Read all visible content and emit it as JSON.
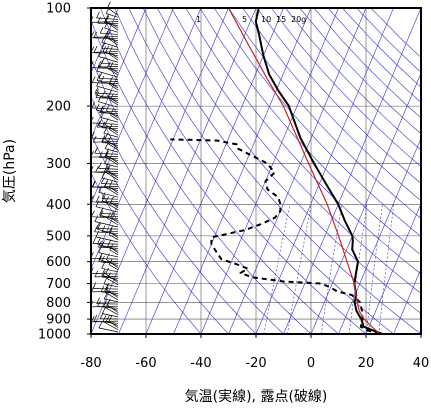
{
  "chart_data": {
    "type": "line",
    "xlabel": "気温(実線), 露点(破線)",
    "ylabel": "気圧(hPa)",
    "xlim": [
      -80,
      40
    ],
    "ylim": [
      1000,
      100
    ],
    "y_scale": "log",
    "x_ticks": [
      -80,
      -60,
      -40,
      -20,
      0,
      20,
      40
    ],
    "x_tick_labels": [
      "-80",
      "-60",
      "-40",
      "-20",
      "0",
      "20",
      "40"
    ],
    "y_ticks": [
      1000,
      900,
      800,
      700,
      600,
      500,
      400,
      300,
      200,
      100
    ],
    "y_tick_labels": [
      "1000",
      "900",
      "800",
      "700",
      "600",
      "500",
      "400",
      "300",
      "200",
      "100"
    ],
    "grid": true,
    "mixing_ratio_labels": [
      "1",
      "5",
      "10",
      "15",
      "20g"
    ],
    "series": [
      {
        "role": "temperature",
        "color": "#000000",
        "style": "solid",
        "points": [
          [
            1000,
            26
          ],
          [
            975,
            22
          ],
          [
            950,
            18
          ],
          [
            900,
            16
          ],
          [
            850,
            13
          ],
          [
            800,
            11
          ],
          [
            760,
            10.5
          ],
          [
            700,
            8
          ],
          [
            650,
            7
          ],
          [
            600,
            6
          ],
          [
            550,
            2
          ],
          [
            520,
            1
          ],
          [
            500,
            0
          ],
          [
            450,
            -5
          ],
          [
            400,
            -10
          ],
          [
            350,
            -17
          ],
          [
            300,
            -25
          ],
          [
            250,
            -34
          ],
          [
            200,
            -43
          ],
          [
            180,
            -49
          ],
          [
            160,
            -55
          ],
          [
            140,
            -60
          ],
          [
            120,
            -65
          ],
          [
            110,
            -68
          ],
          [
            100,
            -69
          ]
        ]
      },
      {
        "role": "dewpoint",
        "color": "#000000",
        "style": "dashed",
        "points": [
          [
            1000,
            25
          ],
          [
            975,
            20
          ],
          [
            950,
            17
          ],
          [
            900,
            16.5
          ],
          [
            850,
            15
          ],
          [
            800,
            13
          ],
          [
            760,
            9
          ],
          [
            740,
            3
          ],
          [
            720,
            0
          ],
          [
            700,
            -4
          ],
          [
            690,
            -18
          ],
          [
            670,
            -30
          ],
          [
            650,
            -35
          ],
          [
            630,
            -33
          ],
          [
            610,
            -38
          ],
          [
            590,
            -44
          ],
          [
            560,
            -47
          ],
          [
            530,
            -50
          ],
          [
            505,
            -51
          ],
          [
            480,
            -40
          ],
          [
            460,
            -35
          ],
          [
            440,
            -31
          ],
          [
            420,
            -30
          ],
          [
            400,
            -31
          ],
          [
            380,
            -33
          ],
          [
            360,
            -38
          ],
          [
            340,
            -40
          ],
          [
            320,
            -38
          ],
          [
            300,
            -42
          ],
          [
            270,
            -55
          ],
          [
            262,
            -56
          ],
          [
            255,
            -64
          ],
          [
            253,
            -81
          ]
        ]
      },
      {
        "role": "reference profile",
        "color": "#cc2222",
        "style": "solid",
        "points": [
          [
            1000,
            25
          ],
          [
            950,
            21
          ],
          [
            900,
            17
          ],
          [
            850,
            14
          ],
          [
            800,
            12
          ],
          [
            700,
            8
          ],
          [
            600,
            2
          ],
          [
            500,
            -5
          ],
          [
            400,
            -14
          ],
          [
            300,
            -27
          ],
          [
            200,
            -45
          ],
          [
            165,
            -55
          ],
          [
            130,
            -67
          ],
          [
            100,
            -80
          ]
        ]
      }
    ],
    "colors": {
      "background_lines": "#3333cc",
      "temperature": "#000000",
      "dewpoint": "#000000",
      "reference": "#cc2222",
      "wind_barbs": "#000000"
    }
  }
}
